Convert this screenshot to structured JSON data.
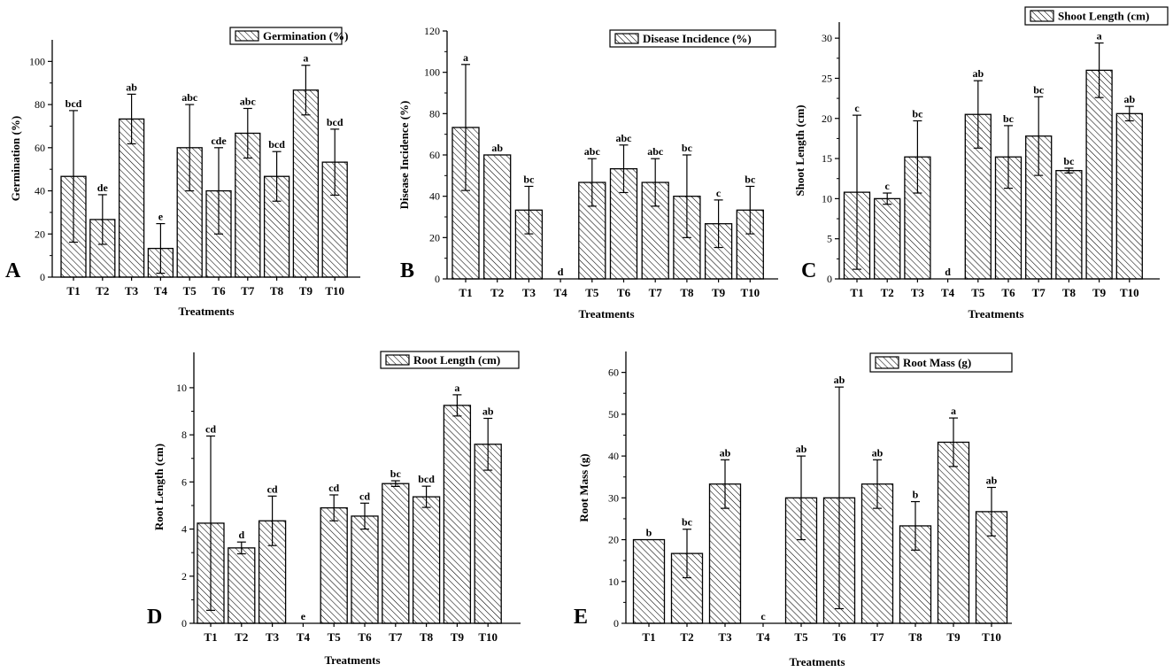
{
  "figure": {
    "xlabel": "Treatments",
    "categories": [
      "T1",
      "T2",
      "T3",
      "T4",
      "T5",
      "T6",
      "T7",
      "T8",
      "T9",
      "T10"
    ]
  },
  "chart_data": [
    {
      "type": "bar",
      "panel": "A",
      "title": "Germination (%)",
      "legend": "Germination (%)",
      "xlabel": "Treatments",
      "ylabel": "Germination (%)",
      "ylim": [
        0,
        110
      ],
      "yticks": [
        0,
        20,
        40,
        60,
        80,
        100
      ],
      "categories": [
        "T1",
        "T2",
        "T3",
        "T4",
        "T5",
        "T6",
        "T7",
        "T8",
        "T9",
        "T10"
      ],
      "values": [
        46.7,
        26.7,
        73.3,
        13.3,
        60,
        40,
        66.7,
        46.7,
        86.7,
        53.3
      ],
      "errors": [
        30.5,
        11.5,
        11.5,
        11.5,
        20,
        20,
        11.5,
        11.5,
        11.5,
        15.3
      ],
      "letters": [
        "bcd",
        "de",
        "ab",
        "e",
        "abc",
        "cde",
        "abc",
        "bcd",
        "a",
        "bcd"
      ]
    },
    {
      "type": "bar",
      "panel": "B",
      "title": "Disease Incidence (%)",
      "legend": "Disease Incidence (%)",
      "xlabel": "Treatments",
      "ylabel": "Disease Incidence (%)",
      "ylim": [
        0,
        120
      ],
      "yticks": [
        0,
        20,
        40,
        60,
        80,
        100,
        120
      ],
      "categories": [
        "T1",
        "T2",
        "T3",
        "T4",
        "T5",
        "T6",
        "T7",
        "T8",
        "T9",
        "T10"
      ],
      "values": [
        73.3,
        60,
        33.3,
        0,
        46.7,
        53.3,
        46.7,
        40,
        26.7,
        33.3
      ],
      "errors": [
        30.5,
        0,
        11.5,
        0,
        11.5,
        11.5,
        11.5,
        20,
        11.5,
        11.5
      ],
      "letters": [
        "a",
        "ab",
        "bc",
        "d",
        "abc",
        "abc",
        "abc",
        "bc",
        "c",
        "bc"
      ]
    },
    {
      "type": "bar",
      "panel": "C",
      "title": "Shoot Length (cm)",
      "legend": "Shoot Length (cm)",
      "xlabel": "Treatments",
      "ylabel": "Shoot Length (cm)",
      "ylim": [
        0,
        32
      ],
      "yticks": [
        0,
        5,
        10,
        15,
        20,
        25,
        30
      ],
      "categories": [
        "T1",
        "T2",
        "T3",
        "T4",
        "T5",
        "T6",
        "T7",
        "T8",
        "T9",
        "T10"
      ],
      "values": [
        10.8,
        10,
        15.2,
        0,
        20.5,
        15.2,
        17.8,
        13.5,
        26,
        20.6
      ],
      "errors": [
        9.6,
        0.7,
        4.5,
        0,
        4.2,
        3.9,
        4.9,
        0.3,
        3.4,
        0.9
      ],
      "letters": [
        "c",
        "c",
        "bc",
        "d",
        "ab",
        "bc",
        "bc",
        "bc",
        "a",
        "ab"
      ]
    },
    {
      "type": "bar",
      "panel": "D",
      "title": "Root Length (cm)",
      "legend": "Root Length (cm)",
      "xlabel": "Treatments",
      "ylabel": "Root Length (cm)",
      "ylim": [
        0,
        11.5
      ],
      "yticks": [
        0,
        2,
        4,
        6,
        8,
        10
      ],
      "categories": [
        "T1",
        "T2",
        "T3",
        "T4",
        "T5",
        "T6",
        "T7",
        "T8",
        "T9",
        "T10"
      ],
      "values": [
        4.25,
        3.2,
        4.35,
        0,
        4.9,
        4.55,
        5.93,
        5.37,
        9.25,
        7.6
      ],
      "errors": [
        3.7,
        0.25,
        1.05,
        0,
        0.55,
        0.55,
        0.12,
        0.45,
        0.45,
        1.1
      ],
      "letters": [
        "cd",
        "d",
        "cd",
        "e",
        "cd",
        "cd",
        "bc",
        "bcd",
        "a",
        "ab"
      ]
    },
    {
      "type": "bar",
      "panel": "E",
      "title": "Root Mass (g)",
      "legend": "Root Mass (g)",
      "xlabel": "Treatments",
      "ylabel": "Root Mass (g)",
      "ylim": [
        0,
        65
      ],
      "yticks": [
        0,
        10,
        20,
        30,
        40,
        50,
        60
      ],
      "categories": [
        "T1",
        "T2",
        "T3",
        "T4",
        "T5",
        "T6",
        "T7",
        "T8",
        "T9",
        "T10"
      ],
      "values": [
        20,
        16.7,
        33.3,
        0,
        30,
        30,
        33.3,
        23.3,
        43.3,
        26.7
      ],
      "errors": [
        0,
        5.8,
        5.8,
        0,
        10,
        26.5,
        5.8,
        5.8,
        5.8,
        5.8
      ],
      "letters": [
        "b",
        "bc",
        "ab",
        "c",
        "ab",
        "ab",
        "ab",
        "b",
        "a",
        "ab"
      ]
    }
  ]
}
